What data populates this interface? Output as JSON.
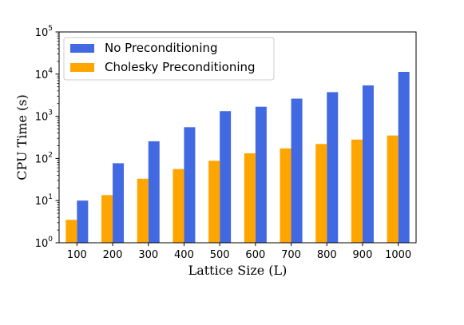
{
  "chart_data": {
    "type": "bar",
    "xlabel": "Lattice Size (L)",
    "ylabel": "CPU Time (s)",
    "yscale": "log",
    "ylim": [
      1,
      100000
    ],
    "grid": false,
    "legend_position": "top-left",
    "categories": [
      "100",
      "200",
      "300",
      "400",
      "500",
      "600",
      "700",
      "800",
      "900",
      "1000"
    ],
    "series": [
      {
        "name": "No Preconditioning",
        "color": "#4169e1",
        "values": [
          10,
          77,
          255,
          550,
          1320,
          1680,
          2620,
          3730,
          5400,
          11300
        ]
      },
      {
        "name": "Cholesky Preconditioning",
        "color": "#ffa500",
        "values": [
          3.5,
          13.5,
          33,
          56,
          88,
          132,
          173,
          220,
          280,
          350
        ]
      }
    ],
    "yticks": [
      {
        "base": "10",
        "exp": "0"
      },
      {
        "base": "10",
        "exp": "1"
      },
      {
        "base": "10",
        "exp": "2"
      },
      {
        "base": "10",
        "exp": "3"
      },
      {
        "base": "10",
        "exp": "4"
      },
      {
        "base": "10",
        "exp": "5"
      }
    ]
  }
}
